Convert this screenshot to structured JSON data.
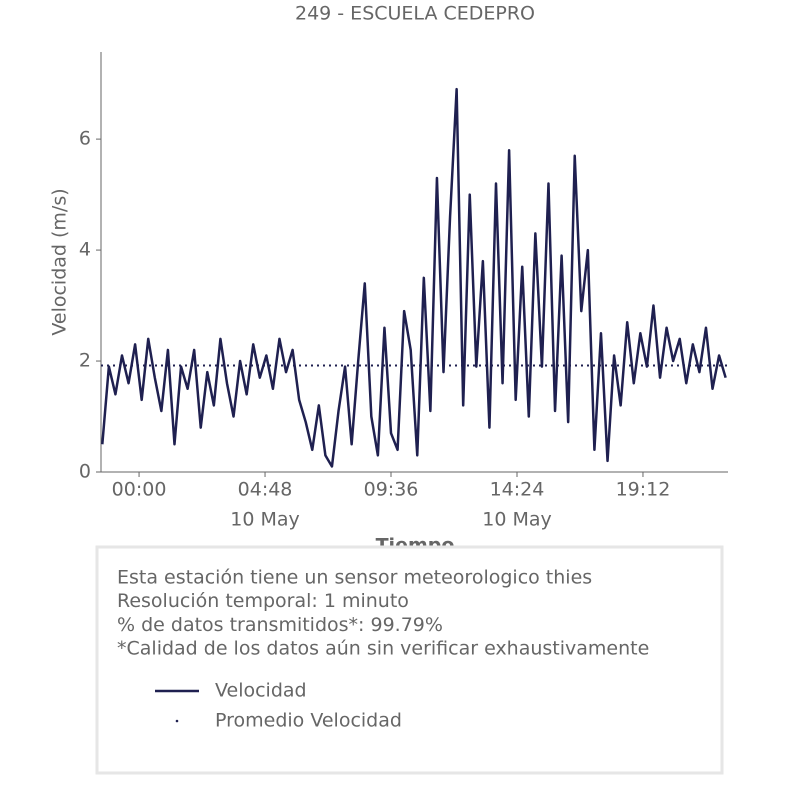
{
  "chart_data": {
    "type": "line",
    "title": "249 - ESCUELA CEDEPRO",
    "y_label": "Velocidad (m/s)",
    "x_label": "Tiempo",
    "xlim": [
      -1.45,
      22.44
    ],
    "xticks": [
      {
        "value": 0,
        "label": "00:00"
      },
      {
        "value": 4.8,
        "label": "04:48"
      },
      {
        "value": 9.6,
        "label": "09:36"
      },
      {
        "value": 14.4,
        "label": "14:24"
      },
      {
        "value": 19.2,
        "label": "19:12"
      }
    ],
    "xtick_dates": [
      {
        "value": 4.8,
        "label": "10 May"
      },
      {
        "value": 14.4,
        "label": "10 May"
      }
    ],
    "ylim": [
      0,
      7.57
    ],
    "yticks": [
      0,
      2,
      4,
      6
    ],
    "x": [
      -1.4,
      -1.15,
      -0.9,
      -0.65,
      -0.4,
      -0.15,
      0.1,
      0.35,
      0.6,
      0.85,
      1.1,
      1.35,
      1.6,
      1.85,
      2.1,
      2.35,
      2.6,
      2.85,
      3.1,
      3.35,
      3.6,
      3.85,
      4.1,
      4.35,
      4.6,
      4.85,
      5.1,
      5.35,
      5.6,
      5.85,
      6.1,
      6.35,
      6.6,
      6.85,
      7.1,
      7.35,
      7.6,
      7.85,
      8.1,
      8.35,
      8.6,
      8.85,
      9.1,
      9.35,
      9.6,
      9.85,
      10.1,
      10.35,
      10.6,
      10.85,
      11.1,
      11.35,
      11.6,
      11.85,
      12.1,
      12.35,
      12.6,
      12.85,
      13.1,
      13.35,
      13.6,
      13.85,
      14.1,
      14.35,
      14.6,
      14.85,
      15.1,
      15.35,
      15.6,
      15.85,
      16.1,
      16.35,
      16.6,
      16.85,
      17.1,
      17.35,
      17.6,
      17.85,
      18.1,
      18.35,
      18.6,
      18.85,
      19.1,
      19.35,
      19.6,
      19.85,
      20.1,
      20.35,
      20.6,
      20.85,
      21.1,
      21.35,
      21.6,
      21.85,
      22.1,
      22.35
    ],
    "series": [
      {
        "name": "Velocidad",
        "color": "#1f2050",
        "values": [
          0.5,
          1.9,
          1.4,
          2.1,
          1.6,
          2.3,
          1.3,
          2.4,
          1.7,
          1.1,
          2.2,
          0.5,
          1.9,
          1.5,
          2.2,
          0.8,
          1.8,
          1.2,
          2.4,
          1.6,
          1.0,
          2.0,
          1.4,
          2.3,
          1.7,
          2.1,
          1.5,
          2.4,
          1.8,
          2.2,
          1.3,
          0.9,
          0.4,
          1.2,
          0.3,
          0.1,
          1.1,
          1.9,
          0.5,
          2.0,
          3.4,
          1.0,
          0.3,
          2.6,
          0.7,
          0.4,
          2.9,
          2.2,
          0.3,
          3.5,
          1.1,
          5.3,
          1.8,
          4.6,
          6.9,
          1.2,
          5.0,
          1.9,
          3.8,
          0.8,
          5.2,
          1.6,
          5.8,
          1.3,
          3.7,
          1.0,
          4.3,
          1.9,
          5.2,
          1.1,
          3.9,
          0.9,
          5.7,
          2.9,
          4.0,
          0.4,
          2.5,
          0.2,
          2.1,
          1.2,
          2.7,
          1.6,
          2.5,
          1.9,
          3.0,
          1.7,
          2.6,
          2.0,
          2.4,
          1.6,
          2.3,
          1.8,
          2.6,
          1.5,
          2.1,
          1.7
        ]
      },
      {
        "name": "Promedio Velocidad",
        "color": "#1f2050",
        "value": 1.92,
        "style": "dotted"
      }
    ],
    "info": [
      "Esta estación tiene un sensor meteorologico thies",
      "Resolución temporal: 1 minuto",
      "% de datos transmitidos*: 99.79%",
      "*Calidad de los datos aún sin verificar exhaustivamente"
    ]
  }
}
